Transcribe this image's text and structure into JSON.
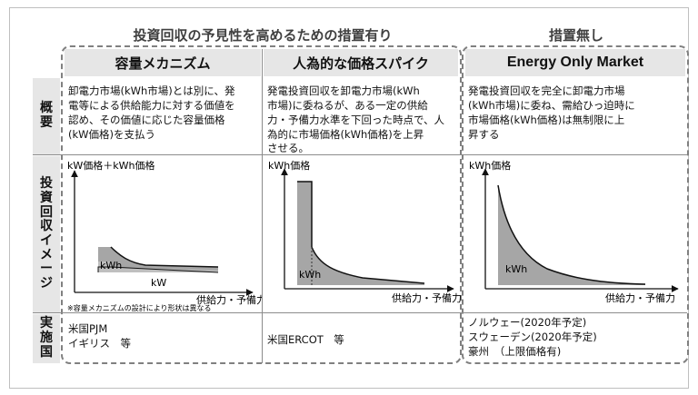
{
  "titles": {
    "with_measures": "投資回収の予見性を高めるための措置有り",
    "without_measures": "措置無し"
  },
  "columns": [
    {
      "label": "容量メカニズム"
    },
    {
      "label": "人為的な価格スパイク"
    },
    {
      "label": "Energy Only Market"
    }
  ],
  "rows": {
    "overview": {
      "label": "概要",
      "chars": [
        "概",
        "要"
      ]
    },
    "image": {
      "label": "投資回収イメージ",
      "chars": [
        "投",
        "資",
        "回",
        "収",
        "イ",
        "メ",
        "ー",
        "ジ"
      ]
    },
    "countries": {
      "label": "実施国",
      "chars": [
        "実",
        "施",
        "国"
      ]
    }
  },
  "overview": [
    [
      "卸電力市場(kWh市場)とは別に、発",
      "電等による供給能力に対する価値を",
      "認め、その価値に応じた容量価格",
      "(kW価格)を支払う"
    ],
    [
      "発電投資回収を卸電力市場(kWh",
      "市場)に委ねるが、ある一定の供給",
      "力・予備力水準を下回った時点で、人",
      "為的に市場価格(kWh価格)を上昇",
      "させる。"
    ],
    [
      "発電投資回収を完全に卸電力市場",
      "(kWh市場)に委ね、需給ひっ迫時に",
      "市場価格(kWh価格)は無制限に上",
      "昇する"
    ]
  ],
  "diagrams": [
    {
      "ylabel": "kW価格＋kWh価格",
      "xlabel": "供給力・予備力",
      "labels": [
        "kWh",
        "kW"
      ],
      "note": "※容量メカニズムの設計により形状は異なる"
    },
    {
      "ylabel": "kWh価格",
      "xlabel": "供給力・予備力",
      "labels": [
        "kWh"
      ]
    },
    {
      "ylabel": "kWh価格",
      "xlabel": "供給力・予備力",
      "labels": [
        "kWh"
      ]
    }
  ],
  "countries": [
    [
      "米国PJM",
      "イギリス　等"
    ],
    [
      "米国ERCOT　等"
    ],
    [
      "ノルウェー(2020年予定)",
      "スウェーデン(2020年予定)",
      "豪州　（上限価格有)"
    ]
  ],
  "colors": {
    "header_bg": "#e6e6e6",
    "fill": "#a6a6a6",
    "curve": "#111111",
    "dash": "#808080"
  }
}
